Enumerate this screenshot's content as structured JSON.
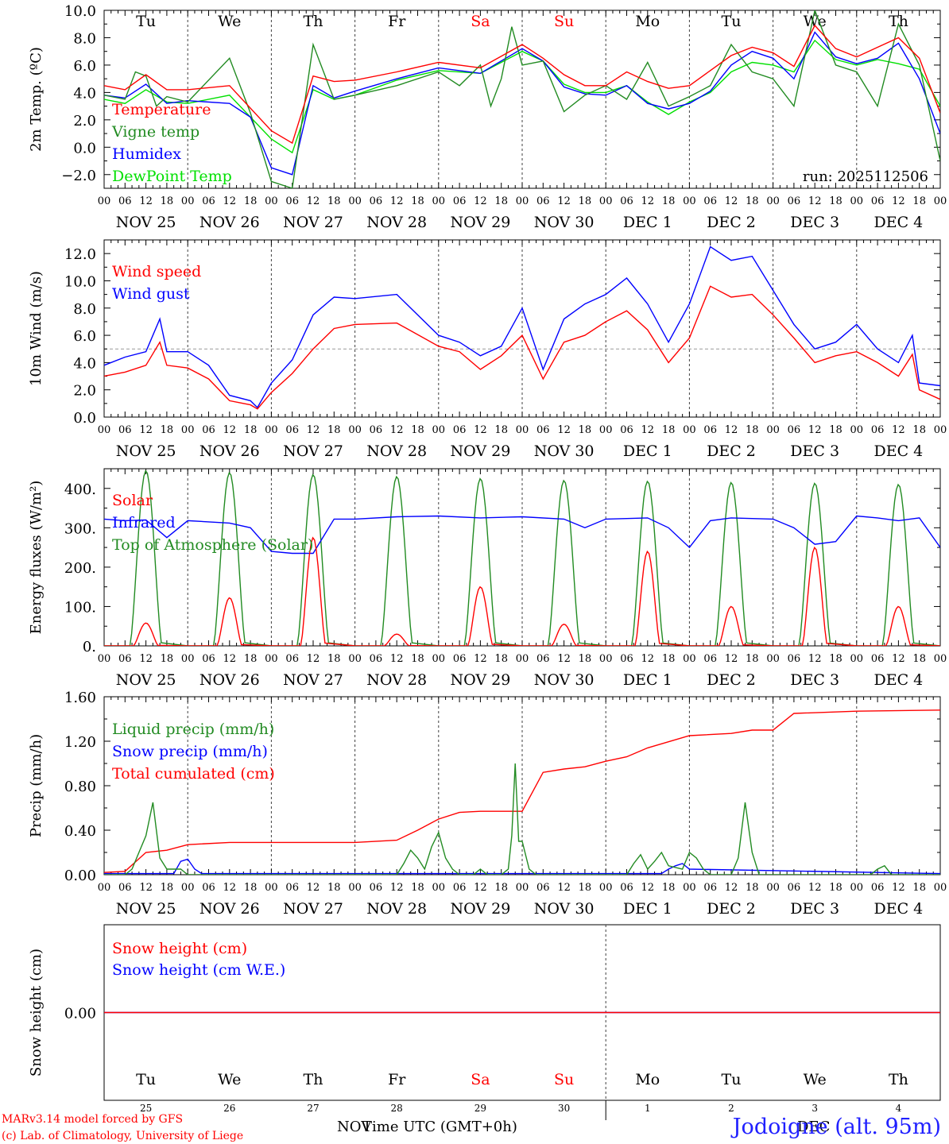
{
  "run_label": "run: 2025112506",
  "station": "Jodoigne (alt. 95m)",
  "footer": {
    "model": "MARv3.14 model forced by GFS",
    "lab": "(c) Lab. of Climatology, University of Liege",
    "xaxis_title": "Time UTC (GMT+0h)",
    "month_left": "NOV",
    "month_right": "DEC"
  },
  "colors": {
    "red": "#ff0000",
    "green": "#228b22",
    "blue": "#0000ff",
    "lightgreen": "#00e000",
    "grid": "#808080",
    "weekend": "#ff0000"
  },
  "days": [
    {
      "abbr": "Tu",
      "num": "25",
      "label": "NOV 25",
      "weekend": false
    },
    {
      "abbr": "We",
      "num": "26",
      "label": "NOV 26",
      "weekend": false
    },
    {
      "abbr": "Th",
      "num": "27",
      "label": "NOV 27",
      "weekend": false
    },
    {
      "abbr": "Fr",
      "num": "28",
      "label": "NOV 28",
      "weekend": false
    },
    {
      "abbr": "Sa",
      "num": "29",
      "label": "NOV 29",
      "weekend": true
    },
    {
      "abbr": "Su",
      "num": "30",
      "label": "NOV 30",
      "weekend": true
    },
    {
      "abbr": "Mo",
      "num": "1",
      "label": "DEC  1",
      "weekend": false
    },
    {
      "abbr": "Tu",
      "num": "2",
      "label": "DEC  2",
      "weekend": false
    },
    {
      "abbr": "We",
      "num": "3",
      "label": "DEC  3",
      "weekend": false
    },
    {
      "abbr": "Th",
      "num": "4",
      "label": "DEC  4",
      "weekend": false
    }
  ],
  "hour_ticks": [
    "00",
    "06",
    "12",
    "18"
  ],
  "chart_data": [
    {
      "type": "line",
      "ylabel": "2m Temp. (ºC)",
      "ylim": [
        -3,
        10
      ],
      "yticks": [
        -2,
        0,
        2,
        4,
        6,
        8,
        10
      ],
      "ytick_labels": [
        "−2.0",
        "0.0",
        "2.0",
        "4.0",
        "6.0",
        "8.0",
        "10.0"
      ],
      "x_unit": "hours since NOV 25 00 UTC",
      "show_weekdays": true,
      "series": [
        {
          "name": "Temperature",
          "color": "red",
          "x": [
            0,
            6,
            12,
            18,
            24,
            36,
            48,
            54,
            60,
            66,
            72,
            84,
            96,
            108,
            120,
            126,
            132,
            138,
            144,
            150,
            156,
            162,
            168,
            174,
            180,
            186,
            192,
            198,
            204,
            210,
            216,
            222,
            228,
            234,
            240
          ],
          "y": [
            4.5,
            4.2,
            5.3,
            4.2,
            4.2,
            4.5,
            1.2,
            0.3,
            5.2,
            4.8,
            4.9,
            5.5,
            6.2,
            5.8,
            7.5,
            6.5,
            5.3,
            4.5,
            4.5,
            5.5,
            4.8,
            4.3,
            4.5,
            5.6,
            6.7,
            7.3,
            6.9,
            5.9,
            8.9,
            7.2,
            6.6,
            7.3,
            8.0,
            6.5,
            2.5
          ]
        },
        {
          "name": "Vigne temp",
          "color": "green",
          "x": [
            0,
            6,
            9,
            12,
            15,
            18,
            24,
            36,
            42,
            48,
            54,
            60,
            66,
            72,
            84,
            96,
            102,
            108,
            111,
            114,
            117,
            120,
            126,
            132,
            138,
            144,
            150,
            156,
            162,
            168,
            174,
            180,
            186,
            192,
            198,
            204,
            210,
            216,
            222,
            228,
            234,
            240
          ],
          "y": [
            3.8,
            3.5,
            5.5,
            5.2,
            3.0,
            3.7,
            3.3,
            6.5,
            2.5,
            -2.5,
            -3.0,
            7.5,
            3.5,
            3.8,
            4.5,
            5.5,
            4.5,
            6.0,
            3.0,
            5.0,
            8.8,
            6.0,
            6.3,
            2.6,
            3.8,
            4.5,
            3.5,
            6.2,
            3.0,
            3.7,
            4.5,
            7.5,
            5.5,
            5.0,
            3.0,
            10.0,
            6.0,
            5.5,
            3.0,
            9.0,
            6.0,
            -1.0
          ]
        },
        {
          "name": "Humidex",
          "color": "blue",
          "x": [
            0,
            6,
            12,
            18,
            24,
            36,
            42,
            48,
            54,
            60,
            66,
            72,
            84,
            96,
            108,
            120,
            126,
            132,
            138,
            144,
            150,
            156,
            162,
            168,
            174,
            180,
            186,
            192,
            198,
            204,
            210,
            216,
            222,
            228,
            234,
            240
          ],
          "y": [
            3.8,
            3.6,
            4.6,
            3.2,
            3.4,
            3.2,
            2.2,
            -1.5,
            -2.0,
            4.5,
            3.6,
            4.1,
            5.0,
            5.8,
            5.4,
            7.2,
            6.3,
            4.4,
            3.9,
            3.8,
            4.5,
            3.2,
            2.8,
            3.2,
            4.1,
            6.0,
            7.0,
            6.5,
            5.0,
            8.4,
            6.6,
            6.1,
            6.5,
            7.6,
            5.0,
            1.0
          ]
        },
        {
          "name": "DewPoint Temp",
          "color": "lightgreen",
          "x": [
            0,
            6,
            12,
            18,
            24,
            36,
            48,
            54,
            60,
            66,
            72,
            84,
            96,
            108,
            120,
            126,
            132,
            138,
            144,
            150,
            156,
            162,
            168,
            174,
            180,
            186,
            192,
            198,
            204,
            210,
            216,
            222,
            228,
            234,
            240
          ],
          "y": [
            3.5,
            3.2,
            4.2,
            3.3,
            3.2,
            3.8,
            0.6,
            -0.4,
            4.2,
            3.5,
            3.8,
            4.9,
            5.6,
            5.4,
            7.0,
            6.3,
            4.6,
            4.0,
            4.0,
            4.5,
            3.3,
            2.4,
            3.3,
            4.0,
            5.5,
            6.2,
            6.0,
            5.5,
            7.8,
            6.4,
            6.0,
            6.4,
            6.1,
            5.7,
            3.0
          ]
        }
      ],
      "legend": [
        "Temperature",
        "Vigne temp",
        "Humidex",
        "DewPoint Temp"
      ]
    },
    {
      "type": "line",
      "ylabel": "10m Wind (m/s)",
      "ylim": [
        0,
        13
      ],
      "yticks": [
        0,
        2,
        4,
        6,
        8,
        10,
        12
      ],
      "ytick_labels": [
        "0.0",
        "2.0",
        "4.0",
        "6.0",
        "8.0",
        "10.0",
        "12.0"
      ],
      "reference_line": 5,
      "series": [
        {
          "name": "Wind speed",
          "color": "red",
          "x": [
            0,
            6,
            12,
            16,
            18,
            24,
            30,
            36,
            42,
            44,
            48,
            54,
            60,
            66,
            72,
            84,
            96,
            102,
            108,
            114,
            120,
            126,
            132,
            138,
            144,
            150,
            156,
            162,
            168,
            174,
            180,
            186,
            192,
            198,
            204,
            210,
            216,
            222,
            228,
            232,
            234,
            240
          ],
          "y": [
            3.0,
            3.3,
            3.8,
            5.5,
            3.8,
            3.6,
            2.8,
            1.2,
            0.9,
            0.6,
            1.8,
            3.2,
            5.0,
            6.5,
            6.8,
            6.9,
            5.2,
            4.8,
            3.5,
            4.5,
            6.0,
            2.8,
            5.5,
            6.0,
            7.0,
            7.8,
            6.4,
            4.0,
            5.8,
            9.6,
            8.8,
            9.0,
            7.5,
            5.8,
            4.0,
            4.5,
            4.8,
            4.0,
            3.0,
            4.6,
            2.0,
            1.3
          ]
        },
        {
          "name": "Wind gust",
          "color": "blue",
          "x": [
            0,
            6,
            12,
            16,
            18,
            24,
            30,
            36,
            42,
            44,
            48,
            54,
            60,
            66,
            72,
            84,
            96,
            102,
            108,
            114,
            120,
            126,
            132,
            138,
            144,
            150,
            156,
            162,
            168,
            174,
            180,
            186,
            192,
            198,
            204,
            210,
            216,
            222,
            228,
            232,
            234,
            240
          ],
          "y": [
            3.8,
            4.4,
            4.8,
            7.2,
            4.8,
            4.8,
            3.8,
            1.6,
            1.2,
            0.7,
            2.5,
            4.2,
            7.5,
            8.8,
            8.7,
            9.0,
            6.0,
            5.5,
            4.5,
            5.2,
            8.0,
            3.5,
            7.2,
            8.3,
            9.0,
            10.2,
            8.3,
            5.5,
            8.3,
            12.5,
            11.5,
            11.8,
            9.3,
            6.8,
            5.0,
            5.5,
            6.8,
            5.0,
            4.0,
            6.0,
            2.5,
            2.3
          ]
        }
      ],
      "legend": [
        "Wind speed",
        "Wind gust"
      ]
    },
    {
      "type": "line",
      "ylabel": "Energy fluxes (W/m²)",
      "ylim": [
        0,
        450
      ],
      "yticks": [
        0,
        100,
        200,
        300,
        400
      ],
      "ytick_labels": [
        "0.",
        "100.",
        "200.",
        "300.",
        "400."
      ],
      "series": [
        {
          "name": "Solar",
          "color": "red",
          "day_peaks": [
            58,
            122,
            275,
            30,
            150,
            55,
            240,
            100,
            250,
            100
          ]
        },
        {
          "name": "Infrared",
          "color": "blue",
          "x": [
            0,
            6,
            12,
            18,
            24,
            36,
            42,
            48,
            54,
            60,
            66,
            72,
            84,
            96,
            108,
            120,
            132,
            138,
            144,
            156,
            162,
            168,
            174,
            180,
            192,
            198,
            204,
            210,
            216,
            222,
            228,
            234,
            240
          ],
          "y": [
            322,
            318,
            320,
            275,
            318,
            312,
            300,
            240,
            235,
            235,
            322,
            322,
            328,
            330,
            325,
            328,
            322,
            300,
            322,
            325,
            300,
            250,
            318,
            325,
            322,
            300,
            258,
            265,
            330,
            325,
            318,
            325,
            250
          ]
        },
        {
          "name": "Top of Atmosphere (Solar)",
          "color": "green",
          "day_peaks": [
            445,
            440,
            435,
            430,
            425,
            420,
            418,
            415,
            413,
            410
          ]
        }
      ],
      "legend": [
        "Solar",
        "Infrared",
        "Top of Atmosphere (Solar)"
      ]
    },
    {
      "type": "line",
      "ylabel": "Precip (mm/h)",
      "ylim": [
        0,
        1.6
      ],
      "yticks": [
        0,
        0.4,
        0.8,
        1.2,
        1.6
      ],
      "ytick_labels": [
        "0.00",
        "0.40",
        "0.80",
        "1.20",
        "1.60"
      ],
      "series": [
        {
          "name": "Liquid precip (mm/h)",
          "color": "green",
          "x": [
            0,
            6,
            8,
            10,
            12,
            14,
            16,
            18,
            22,
            24,
            26,
            84,
            86,
            88,
            90,
            92,
            94,
            96,
            98,
            100,
            102,
            104,
            106,
            108,
            110,
            112,
            114,
            116,
            117,
            118,
            119,
            120,
            122,
            124,
            126,
            150,
            152,
            154,
            156,
            158,
            160,
            162,
            166,
            168,
            170,
            172,
            174,
            176,
            178,
            180,
            182,
            184,
            186,
            188,
            190,
            220,
            222,
            224,
            226,
            240
          ],
          "y": [
            0,
            0,
            0.05,
            0.2,
            0.35,
            0.65,
            0.15,
            0.05,
            0.05,
            0,
            0,
            0,
            0.1,
            0.22,
            0.15,
            0.05,
            0.25,
            0.38,
            0.15,
            0.05,
            0,
            0,
            0,
            0.05,
            0,
            0,
            0,
            0.05,
            0.35,
            1.0,
            0.3,
            0.3,
            0.05,
            0,
            0,
            0,
            0.1,
            0.18,
            0.05,
            0.12,
            0.2,
            0.08,
            0.05,
            0.2,
            0.15,
            0.05,
            0,
            0,
            0,
            0,
            0.15,
            0.65,
            0.2,
            0,
            0,
            0,
            0.05,
            0.08,
            0,
            0
          ]
        },
        {
          "name": "Snow precip (mm/h)",
          "color": "blue",
          "x": [
            0,
            20,
            22,
            24,
            26,
            28,
            160,
            162,
            164,
            166,
            168,
            240
          ],
          "y": [
            0.01,
            0.01,
            0.12,
            0.14,
            0.05,
            0.01,
            0.01,
            0.05,
            0.08,
            0.1,
            0.05,
            0.01
          ]
        },
        {
          "name": "Total cumulated (cm)",
          "color": "red",
          "x": [
            0,
            6,
            12,
            18,
            24,
            36,
            48,
            72,
            84,
            90,
            96,
            102,
            108,
            114,
            120,
            126,
            132,
            138,
            144,
            150,
            156,
            168,
            180,
            186,
            192,
            198,
            216,
            240
          ],
          "y": [
            0.02,
            0.03,
            0.2,
            0.22,
            0.27,
            0.29,
            0.29,
            0.29,
            0.31,
            0.4,
            0.5,
            0.56,
            0.57,
            0.57,
            0.57,
            0.92,
            0.95,
            0.97,
            1.02,
            1.06,
            1.14,
            1.25,
            1.27,
            1.3,
            1.3,
            1.45,
            1.47,
            1.48
          ]
        }
      ],
      "legend": [
        "Liquid precip (mm/h)",
        "Snow precip (mm/h)",
        "Total cumulated (cm)"
      ]
    },
    {
      "type": "line",
      "ylabel": "Snow height (cm)",
      "ylim": [
        -1,
        1
      ],
      "yticks": [
        0
      ],
      "ytick_labels": [
        "0.00"
      ],
      "series": [
        {
          "name": "Snow height (cm)",
          "color": "red",
          "x": [
            0,
            240
          ],
          "y": [
            0,
            0
          ]
        },
        {
          "name": "Snow height (cm W.E.)",
          "color": "blue",
          "x": [
            0,
            240
          ],
          "y": [
            0,
            0
          ]
        }
      ],
      "legend": [
        "Snow height (cm)",
        "Snow height (cm W.E.)"
      ]
    }
  ]
}
